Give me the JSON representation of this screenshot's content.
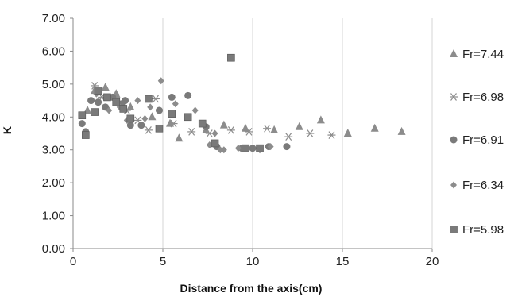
{
  "chart_data": {
    "type": "scatter",
    "xlabel": "Distance from the axis(cm)",
    "ylabel": "K",
    "xlim": [
      0,
      20
    ],
    "ylim": [
      0,
      7
    ],
    "x_ticks": [
      "0",
      "5",
      "10",
      "15",
      "20"
    ],
    "y_ticks": [
      "0.00",
      "1.00",
      "2.00",
      "3.00",
      "4.00",
      "5.00",
      "6.00",
      "7.00"
    ],
    "grid": "vertical",
    "legend": "right",
    "series": [
      {
        "name": "Fr=7.44",
        "marker": "triangle",
        "color": "#8c8c8c",
        "points": [
          [
            0.8,
            4.2
          ],
          [
            1.2,
            4.8
          ],
          [
            1.8,
            4.9
          ],
          [
            2.4,
            4.7
          ],
          [
            3.2,
            4.3
          ],
          [
            4.4,
            4.0
          ],
          [
            5.4,
            3.8
          ],
          [
            5.9,
            3.35
          ],
          [
            7.4,
            3.6
          ],
          [
            8.4,
            3.75
          ],
          [
            9.6,
            3.65
          ],
          [
            11.2,
            3.6
          ],
          [
            12.6,
            3.7
          ],
          [
            13.8,
            3.9
          ],
          [
            15.3,
            3.5
          ],
          [
            16.8,
            3.65
          ],
          [
            18.3,
            3.55
          ]
        ]
      },
      {
        "name": "Fr=6.98",
        "marker": "asterisk",
        "color": "#8c8c8c",
        "points": [
          [
            1.2,
            4.95
          ],
          [
            1.6,
            4.6
          ],
          [
            2.4,
            4.6
          ],
          [
            3.0,
            4.2
          ],
          [
            3.6,
            3.9
          ],
          [
            4.2,
            3.6
          ],
          [
            4.6,
            4.55
          ],
          [
            5.6,
            3.8
          ],
          [
            6.6,
            3.55
          ],
          [
            7.6,
            3.5
          ],
          [
            8.8,
            3.6
          ],
          [
            9.8,
            3.55
          ],
          [
            10.8,
            3.65
          ],
          [
            12.0,
            3.4
          ],
          [
            13.2,
            3.5
          ],
          [
            14.4,
            3.45
          ]
        ]
      },
      {
        "name": "Fr=6.91",
        "marker": "circle",
        "color": "#7a7a7a",
        "points": [
          [
            0.5,
            3.8
          ],
          [
            0.7,
            3.55
          ],
          [
            1.0,
            4.5
          ],
          [
            1.4,
            4.45
          ],
          [
            1.8,
            4.3
          ],
          [
            2.2,
            4.6
          ],
          [
            2.7,
            4.4
          ],
          [
            2.9,
            4.5
          ],
          [
            3.2,
            3.75
          ],
          [
            3.8,
            3.75
          ],
          [
            4.8,
            4.2
          ],
          [
            5.5,
            4.6
          ],
          [
            6.4,
            4.65
          ],
          [
            7.4,
            3.7
          ],
          [
            8.0,
            3.1
          ],
          [
            9.4,
            3.05
          ],
          [
            10.0,
            3.05
          ],
          [
            10.9,
            3.1
          ],
          [
            11.9,
            3.1
          ]
        ]
      },
      {
        "name": "Fr=6.34",
        "marker": "diamond",
        "color": "#8c8c8c",
        "points": [
          [
            1.3,
            4.7
          ],
          [
            2.0,
            4.2
          ],
          [
            2.6,
            4.3
          ],
          [
            3.0,
            3.9
          ],
          [
            3.6,
            4.5
          ],
          [
            4.0,
            3.95
          ],
          [
            4.3,
            4.3
          ],
          [
            4.9,
            5.1
          ],
          [
            5.7,
            4.4
          ],
          [
            6.8,
            4.2
          ],
          [
            7.6,
            3.15
          ],
          [
            7.9,
            3.5
          ],
          [
            8.2,
            3.0
          ],
          [
            8.4,
            3.0
          ],
          [
            9.2,
            3.05
          ],
          [
            10.4,
            3.0
          ],
          [
            11.0,
            3.1
          ]
        ]
      },
      {
        "name": "Fr=5.98",
        "marker": "square",
        "color": "#7a7a7a",
        "points": [
          [
            0.5,
            4.05
          ],
          [
            0.7,
            3.45
          ],
          [
            1.2,
            4.15
          ],
          [
            1.4,
            4.8
          ],
          [
            1.9,
            4.6
          ],
          [
            2.4,
            4.45
          ],
          [
            2.8,
            4.25
          ],
          [
            3.2,
            3.95
          ],
          [
            4.2,
            4.55
          ],
          [
            4.8,
            3.65
          ],
          [
            5.5,
            4.1
          ],
          [
            6.4,
            4.0
          ],
          [
            7.2,
            3.8
          ],
          [
            7.9,
            3.2
          ],
          [
            8.8,
            5.8
          ],
          [
            9.6,
            3.05
          ],
          [
            10.4,
            3.05
          ]
        ]
      }
    ]
  }
}
